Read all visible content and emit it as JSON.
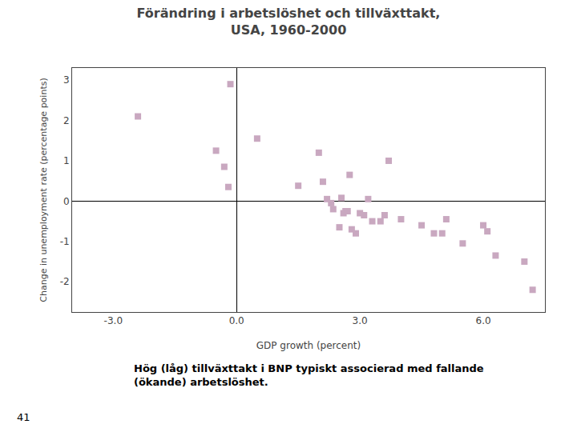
{
  "chart_data": {
    "type": "scatter",
    "title": "Förändring i arbetslöshet och tillväxttakt,\nUSA, 1960-2000",
    "x_label": "GDP growth (percent)",
    "y_label": "Change in unemployment rate (percentage points)",
    "annotations": [
      "Hög (låg) tillväxttakt i BNP typiskt associerad med fallande\n(ökande) arbetslöshet.",
      "41"
    ],
    "color": "#c9a8c0",
    "marker": "square",
    "grid": false,
    "xlim": [
      -4.0,
      7.5
    ],
    "ylim": [
      -2.75,
      3.3
    ],
    "xticks": [
      {
        "value": -3.0,
        "label": "-3.0"
      },
      {
        "value": 0.0,
        "label": "0.0"
      },
      {
        "value": 3.0,
        "label": "3.0"
      },
      {
        "value": 6.0,
        "label": "6.0"
      }
    ],
    "yticks": [
      -2,
      -1,
      0,
      1,
      2,
      3
    ],
    "x": [
      -2.4,
      -0.5,
      -0.3,
      -0.2,
      -0.15,
      0.5,
      1.5,
      2.0,
      2.1,
      2.2,
      2.3,
      2.35,
      2.5,
      2.55,
      2.6,
      2.65,
      2.7,
      2.75,
      2.8,
      2.9,
      3.0,
      3.1,
      3.2,
      3.3,
      3.5,
      3.6,
      3.7,
      4.0,
      4.5,
      4.8,
      5.0,
      5.1,
      5.5,
      6.0,
      6.1,
      6.3,
      7.0,
      7.2
    ],
    "values": [
      2.1,
      1.25,
      0.85,
      0.35,
      2.9,
      1.55,
      0.38,
      1.2,
      0.48,
      0.05,
      -0.05,
      -0.2,
      -0.65,
      0.08,
      -0.3,
      -0.25,
      -0.25,
      0.65,
      -0.7,
      -0.8,
      -0.3,
      -0.35,
      0.05,
      -0.5,
      -0.5,
      -0.35,
      1.0,
      -0.45,
      -0.6,
      -0.8,
      -0.8,
      -0.45,
      -1.05,
      -0.6,
      -0.75,
      -1.35,
      -1.5,
      -2.2
    ]
  }
}
